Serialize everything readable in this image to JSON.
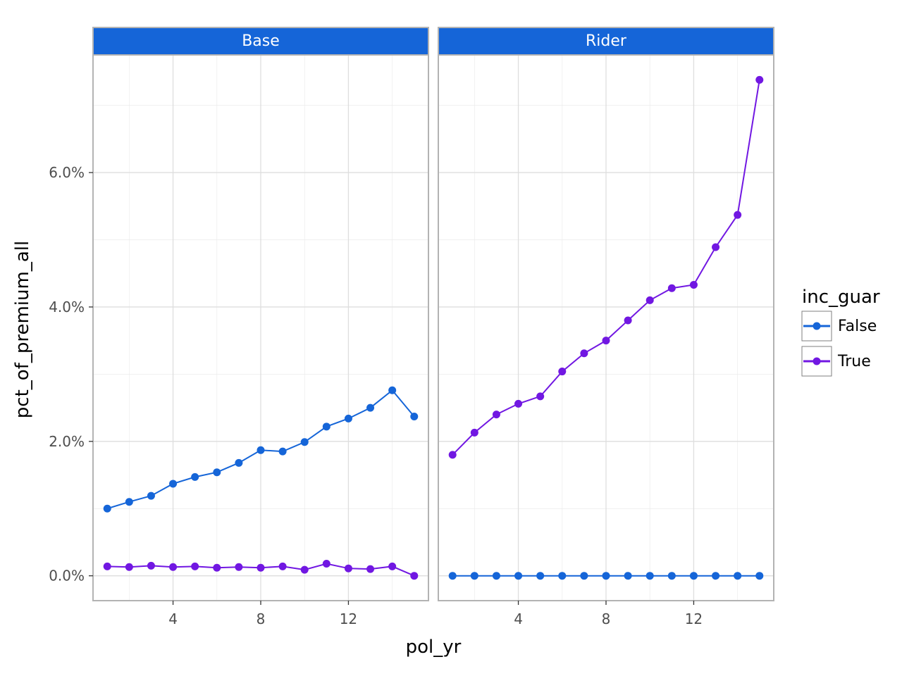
{
  "chart_data": {
    "type": "line",
    "xlabel": "pol_yr",
    "ylabel": "pct_of_premium_all",
    "xlim": [
      0.35,
      15.65
    ],
    "ylim": [
      -0.0037,
      0.0774
    ],
    "x_ticks": [
      4,
      8,
      12
    ],
    "x_tick_labels": [
      "4",
      "8",
      "12"
    ],
    "y_ticks": [
      0,
      0.02,
      0.04,
      0.06
    ],
    "y_tick_labels": [
      "0.0%",
      "2.0%",
      "4.0%",
      "6.0%"
    ],
    "grid": true,
    "legend": {
      "title": "inc_guar",
      "position": "right",
      "entries": [
        {
          "label": "False",
          "color": "#1565d8"
        },
        {
          "label": "True",
          "color": "#7117e2"
        }
      ]
    },
    "strip_color": "#1565d8",
    "panels": [
      {
        "label": "Base",
        "series": [
          {
            "name": "False",
            "color": "#1565d8",
            "x": [
              1,
              2,
              3,
              4,
              5,
              6,
              7,
              8,
              9,
              10,
              11,
              12,
              13,
              14,
              15
            ],
            "y": [
              0.01,
              0.011,
              0.0119,
              0.0137,
              0.0147,
              0.0154,
              0.0168,
              0.0187,
              0.0185,
              0.0199,
              0.0222,
              0.0234,
              0.025,
              0.0276,
              0.0237
            ]
          },
          {
            "name": "True",
            "color": "#7117e2",
            "x": [
              1,
              2,
              3,
              4,
              5,
              6,
              7,
              8,
              9,
              10,
              11,
              12,
              13,
              14,
              15
            ],
            "y": [
              0.0014,
              0.0013,
              0.0015,
              0.0013,
              0.0014,
              0.0012,
              0.0013,
              0.0012,
              0.0014,
              0.0009,
              0.0018,
              0.0011,
              0.001,
              0.0014,
              0.0
            ]
          }
        ]
      },
      {
        "label": "Rider",
        "series": [
          {
            "name": "True",
            "color": "#7117e2",
            "x": [
              1,
              2,
              3,
              4,
              5,
              6,
              7,
              8,
              9,
              10,
              11,
              12,
              13,
              14,
              15
            ],
            "y": [
              0.018,
              0.0213,
              0.024,
              0.0256,
              0.0267,
              0.0304,
              0.0331,
              0.035,
              0.038,
              0.041,
              0.0428,
              0.0433,
              0.0489,
              0.0537,
              0.0738
            ]
          },
          {
            "name": "False",
            "color": "#1565d8",
            "x": [
              1,
              2,
              3,
              4,
              5,
              6,
              7,
              8,
              9,
              10,
              11,
              12,
              13,
              14,
              15
            ],
            "y": [
              0,
              0,
              0,
              0,
              0,
              0,
              0,
              0,
              0,
              0,
              0,
              0,
              0,
              0,
              0
            ]
          }
        ]
      }
    ]
  }
}
